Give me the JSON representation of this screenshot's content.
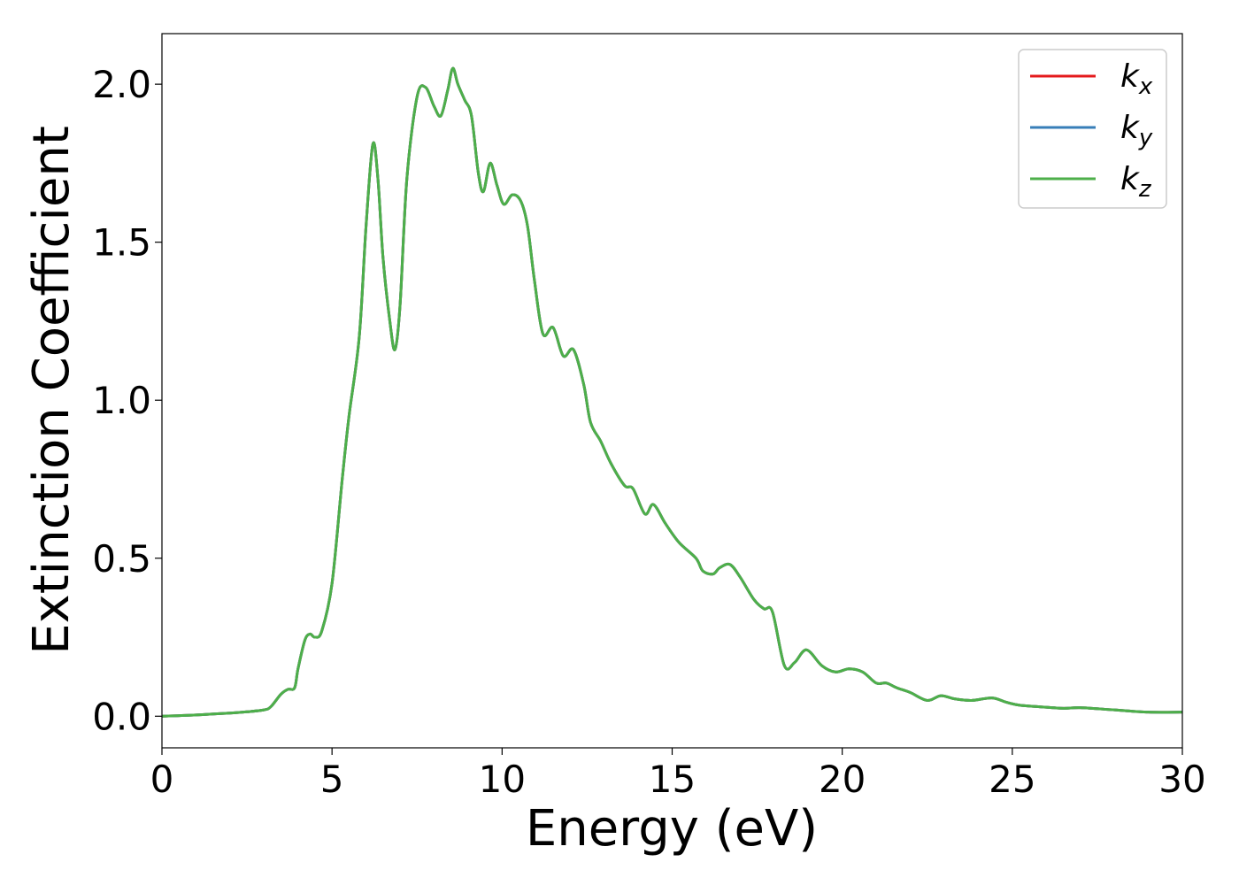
{
  "chart_data": {
    "type": "line",
    "title": "",
    "xlabel": "Energy (eV)",
    "ylabel": "Extinction Coefficient",
    "xlim": [
      0,
      30
    ],
    "ylim": [
      -0.1,
      2.16
    ],
    "x_ticks": [
      0,
      5,
      10,
      15,
      20,
      25,
      30
    ],
    "x_tick_labels": [
      "0",
      "5",
      "10",
      "15",
      "20",
      "25",
      "30"
    ],
    "y_ticks": [
      0.0,
      0.5,
      1.0,
      1.5,
      2.0
    ],
    "y_tick_labels": [
      "0.0",
      "0.5",
      "1.0",
      "1.5",
      "2.0"
    ],
    "grid": false,
    "legend_position": "top-right",
    "x": [
      0,
      1,
      2,
      2.5,
      3,
      3.2,
      3.5,
      3.7,
      3.9,
      4.0,
      4.2,
      4.35,
      4.5,
      4.7,
      5.0,
      5.3,
      5.5,
      5.8,
      6.0,
      6.2,
      6.35,
      6.5,
      6.7,
      6.85,
      7.0,
      7.2,
      7.5,
      7.75,
      8.0,
      8.2,
      8.4,
      8.55,
      8.7,
      8.9,
      9.1,
      9.3,
      9.45,
      9.65,
      9.85,
      10.05,
      10.3,
      10.55,
      10.75,
      10.95,
      11.2,
      11.5,
      11.8,
      12.1,
      12.4,
      12.6,
      12.9,
      13.2,
      13.6,
      13.85,
      14.2,
      14.45,
      14.8,
      15.2,
      15.7,
      15.9,
      16.2,
      16.4,
      16.7,
      17.0,
      17.4,
      17.7,
      17.95,
      18.3,
      18.6,
      18.95,
      19.4,
      19.8,
      20.2,
      20.6,
      21.0,
      21.3,
      21.6,
      22.0,
      22.5,
      22.9,
      23.3,
      23.8,
      24.4,
      24.8,
      25.2,
      25.8,
      26.5,
      27.0,
      28.0,
      29.0,
      30.0
    ],
    "series": [
      {
        "name": "k_x",
        "color": "#e41a1c",
        "values": [
          0.0,
          0.004,
          0.01,
          0.014,
          0.02,
          0.03,
          0.07,
          0.085,
          0.09,
          0.15,
          0.24,
          0.26,
          0.25,
          0.27,
          0.42,
          0.75,
          0.95,
          1.2,
          1.55,
          1.81,
          1.7,
          1.45,
          1.25,
          1.16,
          1.3,
          1.7,
          1.96,
          1.99,
          1.93,
          1.9,
          1.98,
          2.05,
          2.0,
          1.95,
          1.9,
          1.72,
          1.66,
          1.75,
          1.68,
          1.62,
          1.65,
          1.63,
          1.55,
          1.38,
          1.21,
          1.23,
          1.14,
          1.16,
          1.05,
          0.93,
          0.87,
          0.8,
          0.73,
          0.72,
          0.64,
          0.67,
          0.61,
          0.55,
          0.5,
          0.46,
          0.45,
          0.47,
          0.48,
          0.44,
          0.37,
          0.34,
          0.33,
          0.16,
          0.17,
          0.21,
          0.16,
          0.14,
          0.15,
          0.14,
          0.105,
          0.105,
          0.09,
          0.075,
          0.05,
          0.065,
          0.055,
          0.05,
          0.058,
          0.045,
          0.035,
          0.03,
          0.025,
          0.027,
          0.02,
          0.013,
          0.013
        ]
      },
      {
        "name": "k_y",
        "color": "#377eb8",
        "values": [
          0.0,
          0.004,
          0.01,
          0.014,
          0.02,
          0.03,
          0.07,
          0.085,
          0.09,
          0.15,
          0.24,
          0.26,
          0.25,
          0.27,
          0.42,
          0.75,
          0.95,
          1.2,
          1.55,
          1.81,
          1.7,
          1.45,
          1.25,
          1.16,
          1.3,
          1.7,
          1.96,
          1.99,
          1.93,
          1.9,
          1.98,
          2.05,
          2.0,
          1.95,
          1.9,
          1.72,
          1.66,
          1.75,
          1.68,
          1.62,
          1.65,
          1.63,
          1.55,
          1.38,
          1.21,
          1.23,
          1.14,
          1.16,
          1.05,
          0.93,
          0.87,
          0.8,
          0.73,
          0.72,
          0.64,
          0.67,
          0.61,
          0.55,
          0.5,
          0.46,
          0.45,
          0.47,
          0.48,
          0.44,
          0.37,
          0.34,
          0.33,
          0.16,
          0.17,
          0.21,
          0.16,
          0.14,
          0.15,
          0.14,
          0.105,
          0.105,
          0.09,
          0.075,
          0.05,
          0.065,
          0.055,
          0.05,
          0.058,
          0.045,
          0.035,
          0.03,
          0.025,
          0.027,
          0.02,
          0.013,
          0.013
        ]
      },
      {
        "name": "k_z",
        "color": "#4daf4a",
        "values": [
          0.0,
          0.004,
          0.01,
          0.014,
          0.02,
          0.03,
          0.07,
          0.085,
          0.09,
          0.15,
          0.24,
          0.26,
          0.25,
          0.27,
          0.42,
          0.75,
          0.95,
          1.2,
          1.55,
          1.81,
          1.7,
          1.45,
          1.25,
          1.16,
          1.3,
          1.7,
          1.96,
          1.99,
          1.93,
          1.9,
          1.98,
          2.05,
          2.0,
          1.95,
          1.9,
          1.72,
          1.66,
          1.75,
          1.68,
          1.62,
          1.65,
          1.63,
          1.55,
          1.38,
          1.21,
          1.23,
          1.14,
          1.16,
          1.05,
          0.93,
          0.87,
          0.8,
          0.73,
          0.72,
          0.64,
          0.67,
          0.61,
          0.55,
          0.5,
          0.46,
          0.45,
          0.47,
          0.48,
          0.44,
          0.37,
          0.34,
          0.33,
          0.16,
          0.17,
          0.21,
          0.16,
          0.14,
          0.15,
          0.14,
          0.105,
          0.105,
          0.09,
          0.075,
          0.05,
          0.065,
          0.055,
          0.05,
          0.058,
          0.045,
          0.035,
          0.03,
          0.025,
          0.027,
          0.02,
          0.013,
          0.013
        ]
      }
    ],
    "legend": [
      {
        "base": "k",
        "sub": "x",
        "color": "#e41a1c"
      },
      {
        "base": "k",
        "sub": "y",
        "color": "#377eb8"
      },
      {
        "base": "k",
        "sub": "z",
        "color": "#4daf4a"
      }
    ]
  }
}
